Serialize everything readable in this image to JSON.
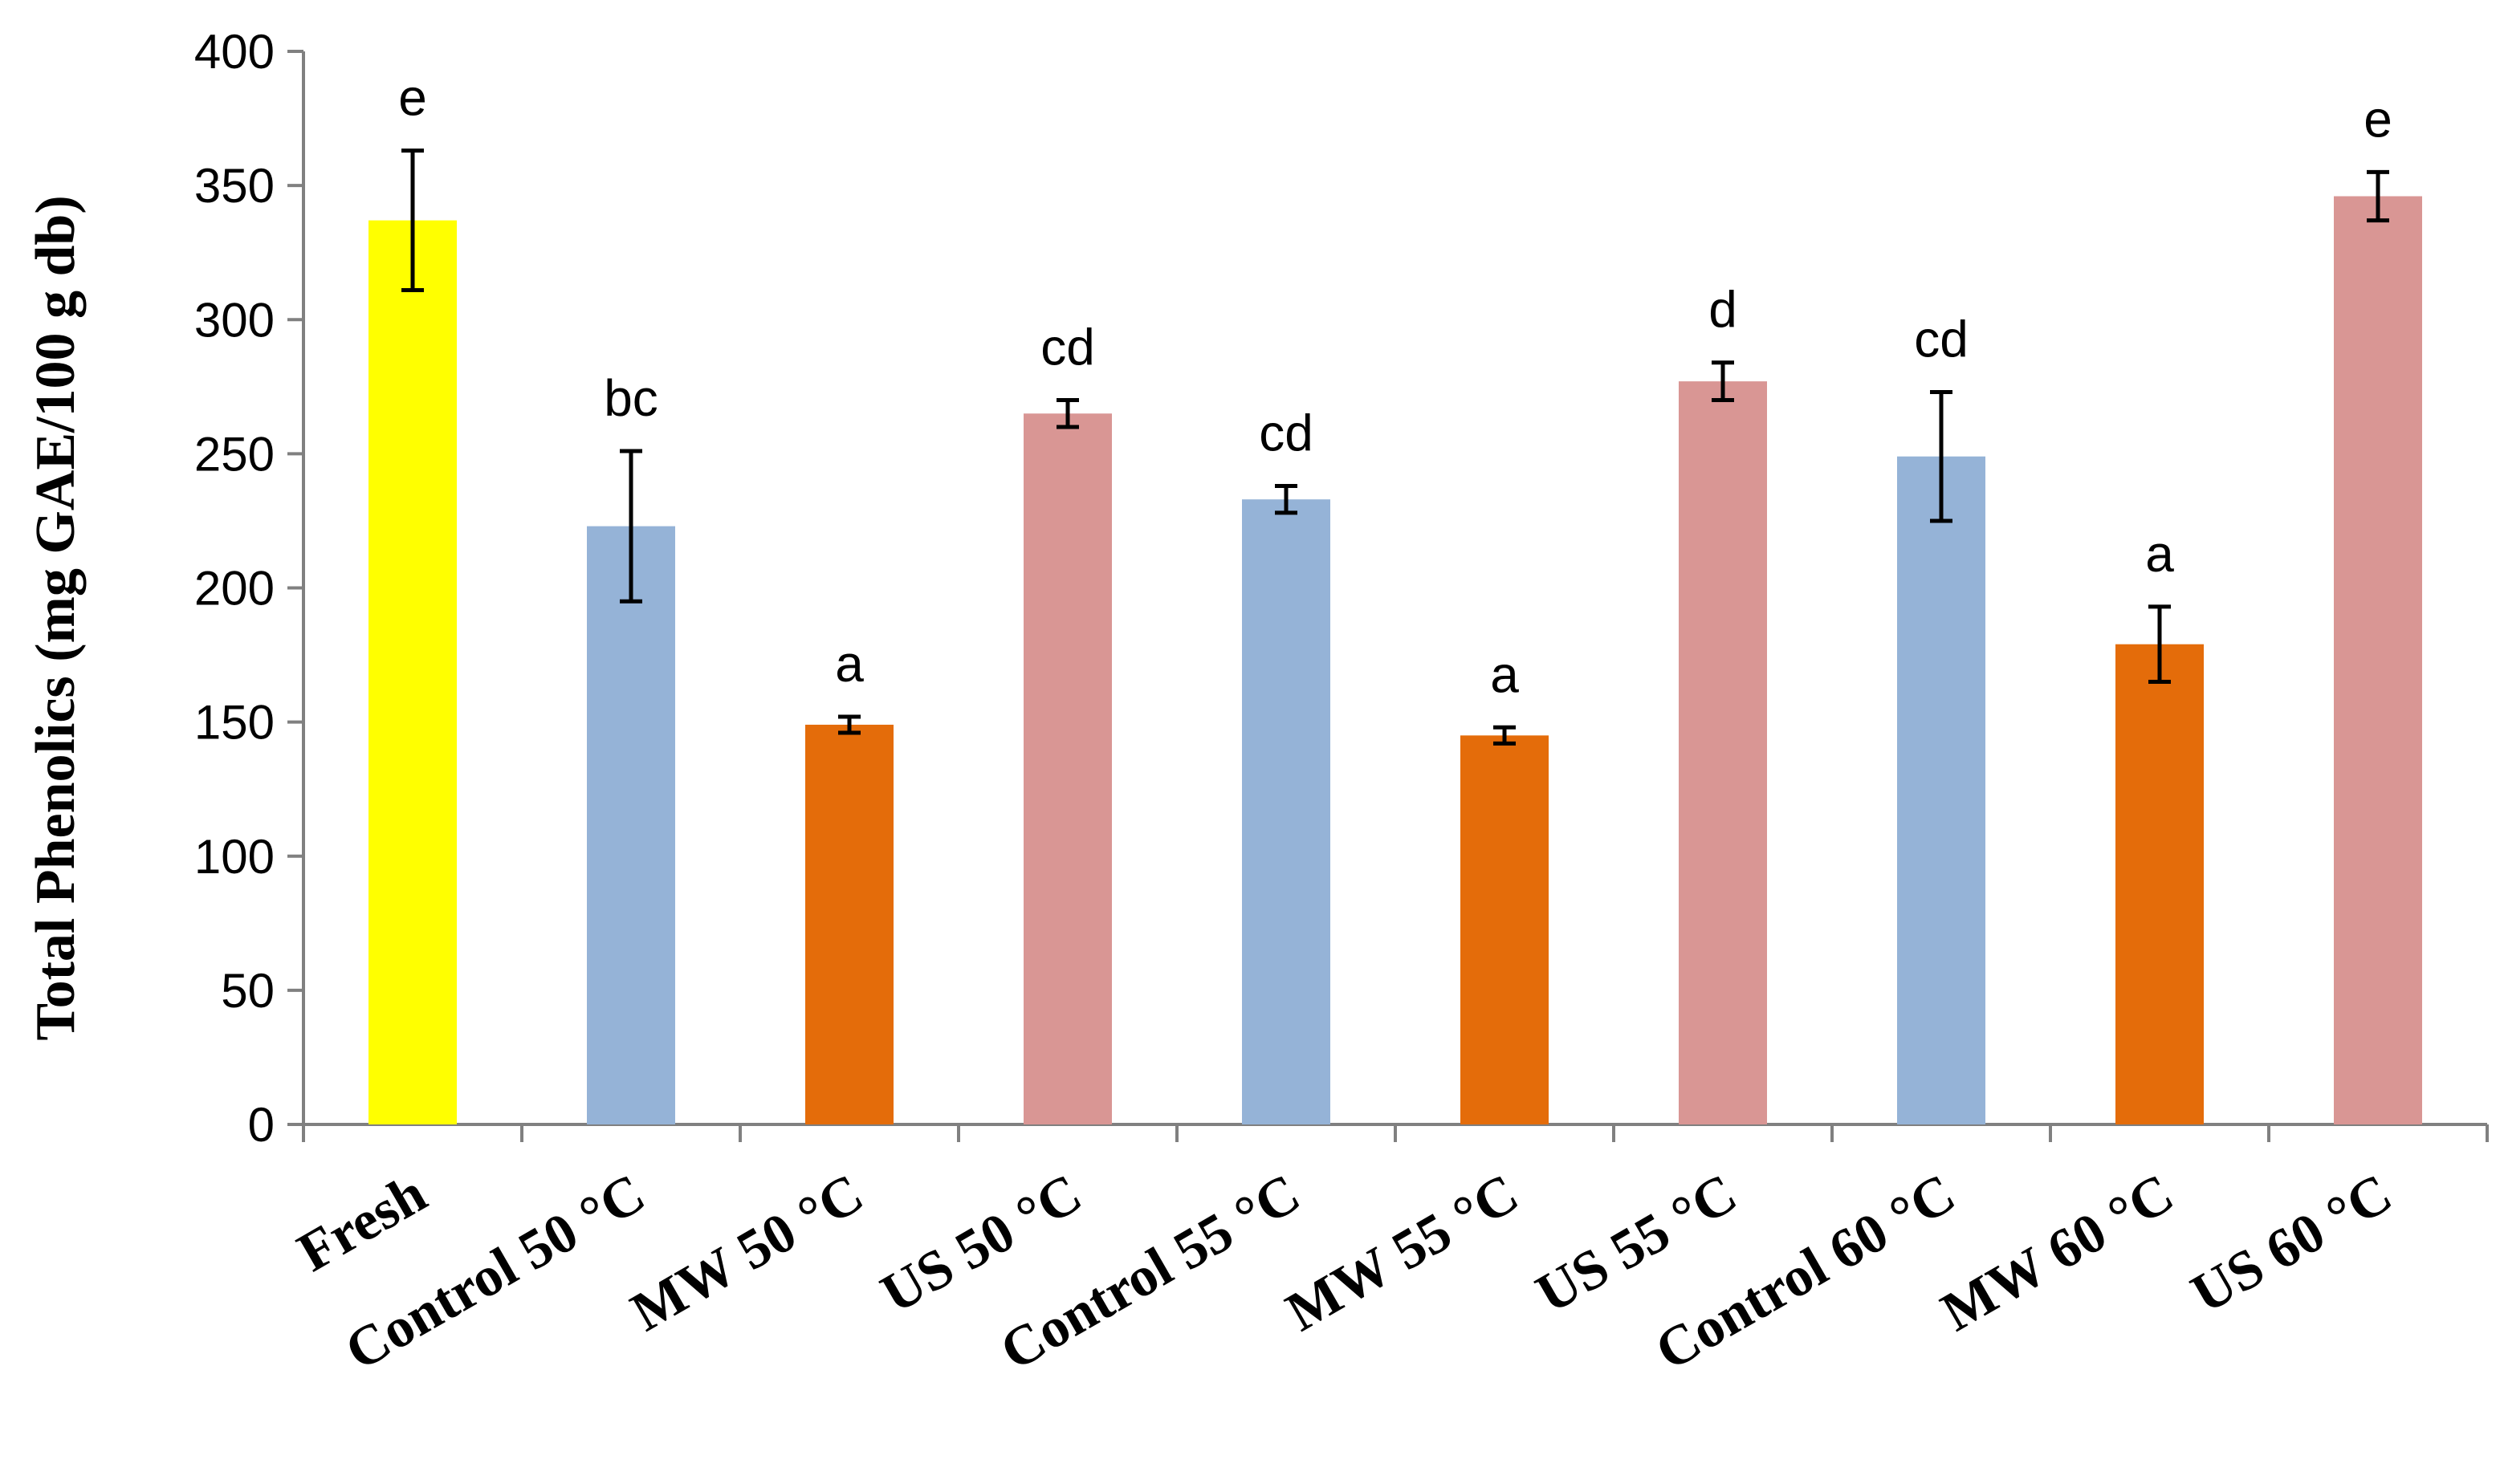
{
  "chart_data": {
    "type": "bar",
    "title": "",
    "xlabel": "",
    "ylabel": "Total Phenolics (mg GAE/100 g db)",
    "ylim": [
      0,
      400
    ],
    "yticks": [
      0,
      50,
      100,
      150,
      200,
      250,
      300,
      350,
      400
    ],
    "grid": false,
    "legend": "none",
    "categories": [
      "Fresh",
      "Control 50 °C",
      "MW 50 °C",
      "US 50 °C",
      "Control 55 °C",
      "MW 55 °C",
      "US 55 °C",
      "Control 60 °C",
      "MW 60 °C",
      "US 60 °C"
    ],
    "values": [
      337,
      223,
      149,
      265,
      233,
      145,
      277,
      249,
      179,
      346
    ],
    "errors": [
      26,
      28,
      3,
      5,
      5,
      3,
      7,
      24,
      14,
      9
    ],
    "letters": [
      "e",
      "bc",
      "a",
      "cd",
      "cd",
      "a",
      "d",
      "cd",
      "a",
      "e"
    ],
    "colors": [
      "#FFFF00",
      "#95B3D7",
      "#E46C0A",
      "#D99694",
      "#95B3D7",
      "#E46C0A",
      "#D99694",
      "#95B3D7",
      "#E46C0A",
      "#D99694"
    ]
  }
}
